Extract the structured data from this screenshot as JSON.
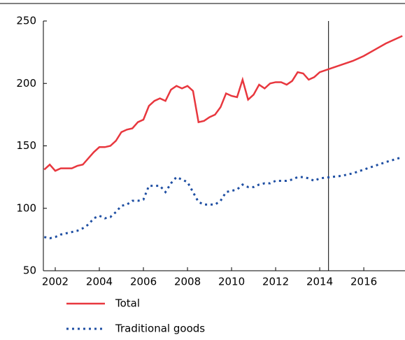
{
  "chart_data": {
    "type": "line",
    "x": [
      2001.5,
      2001.75,
      2002,
      2002.25,
      2002.5,
      2002.75,
      2003,
      2003.25,
      2003.5,
      2003.75,
      2004,
      2004.25,
      2004.5,
      2004.75,
      2005,
      2005.25,
      2005.5,
      2005.75,
      2006,
      2006.25,
      2006.5,
      2006.75,
      2007,
      2007.25,
      2007.5,
      2007.75,
      2008,
      2008.25,
      2008.5,
      2008.75,
      2009,
      2009.25,
      2009.5,
      2009.75,
      2010,
      2010.25,
      2010.5,
      2010.75,
      2011,
      2011.25,
      2011.5,
      2011.75,
      2012,
      2012.25,
      2012.5,
      2012.75,
      2013,
      2013.25,
      2013.5,
      2013.75,
      2014,
      2014.5,
      2015,
      2015.5,
      2016,
      2016.5,
      2017,
      2017.75
    ],
    "series": [
      {
        "name": "Total",
        "color": "#e8373e",
        "dash": "solid",
        "values": [
          131,
          135,
          130,
          132,
          132,
          132,
          134,
          135,
          140,
          145,
          149,
          149,
          150,
          154,
          161,
          163,
          164,
          169,
          171,
          182,
          186,
          188,
          186,
          195,
          198,
          196,
          198,
          194,
          169,
          170,
          173,
          175,
          181,
          192,
          190,
          189,
          203,
          187,
          191,
          199,
          196,
          200,
          201,
          201,
          199,
          202,
          209,
          208,
          203,
          205,
          209,
          212,
          215,
          218,
          222,
          227,
          232,
          238
        ]
      },
      {
        "name": "Traditional goods",
        "color": "#1f4fa3",
        "dash": "dotted",
        "values": [
          77,
          76,
          77,
          79,
          80,
          81,
          82,
          84,
          87,
          92,
          94,
          92,
          93,
          97,
          102,
          103,
          106,
          106,
          107,
          118,
          118,
          118,
          113,
          120,
          125,
          123,
          121,
          113,
          105,
          103,
          103,
          103,
          106,
          113,
          114,
          115,
          119,
          117,
          117,
          119,
          120,
          120,
          122,
          122,
          122,
          123,
          125,
          125,
          124,
          122,
          124,
          125,
          126,
          128,
          131,
          134,
          137,
          141
        ]
      }
    ],
    "xlim": [
      2001.46,
      2017.87
    ],
    "xticks": [
      2002,
      2004,
      2006,
      2008,
      2010,
      2012,
      2014,
      2016
    ],
    "ylim": [
      50,
      250
    ],
    "yticks": [
      50,
      100,
      150,
      200,
      250
    ],
    "vline": 2014.4
  }
}
